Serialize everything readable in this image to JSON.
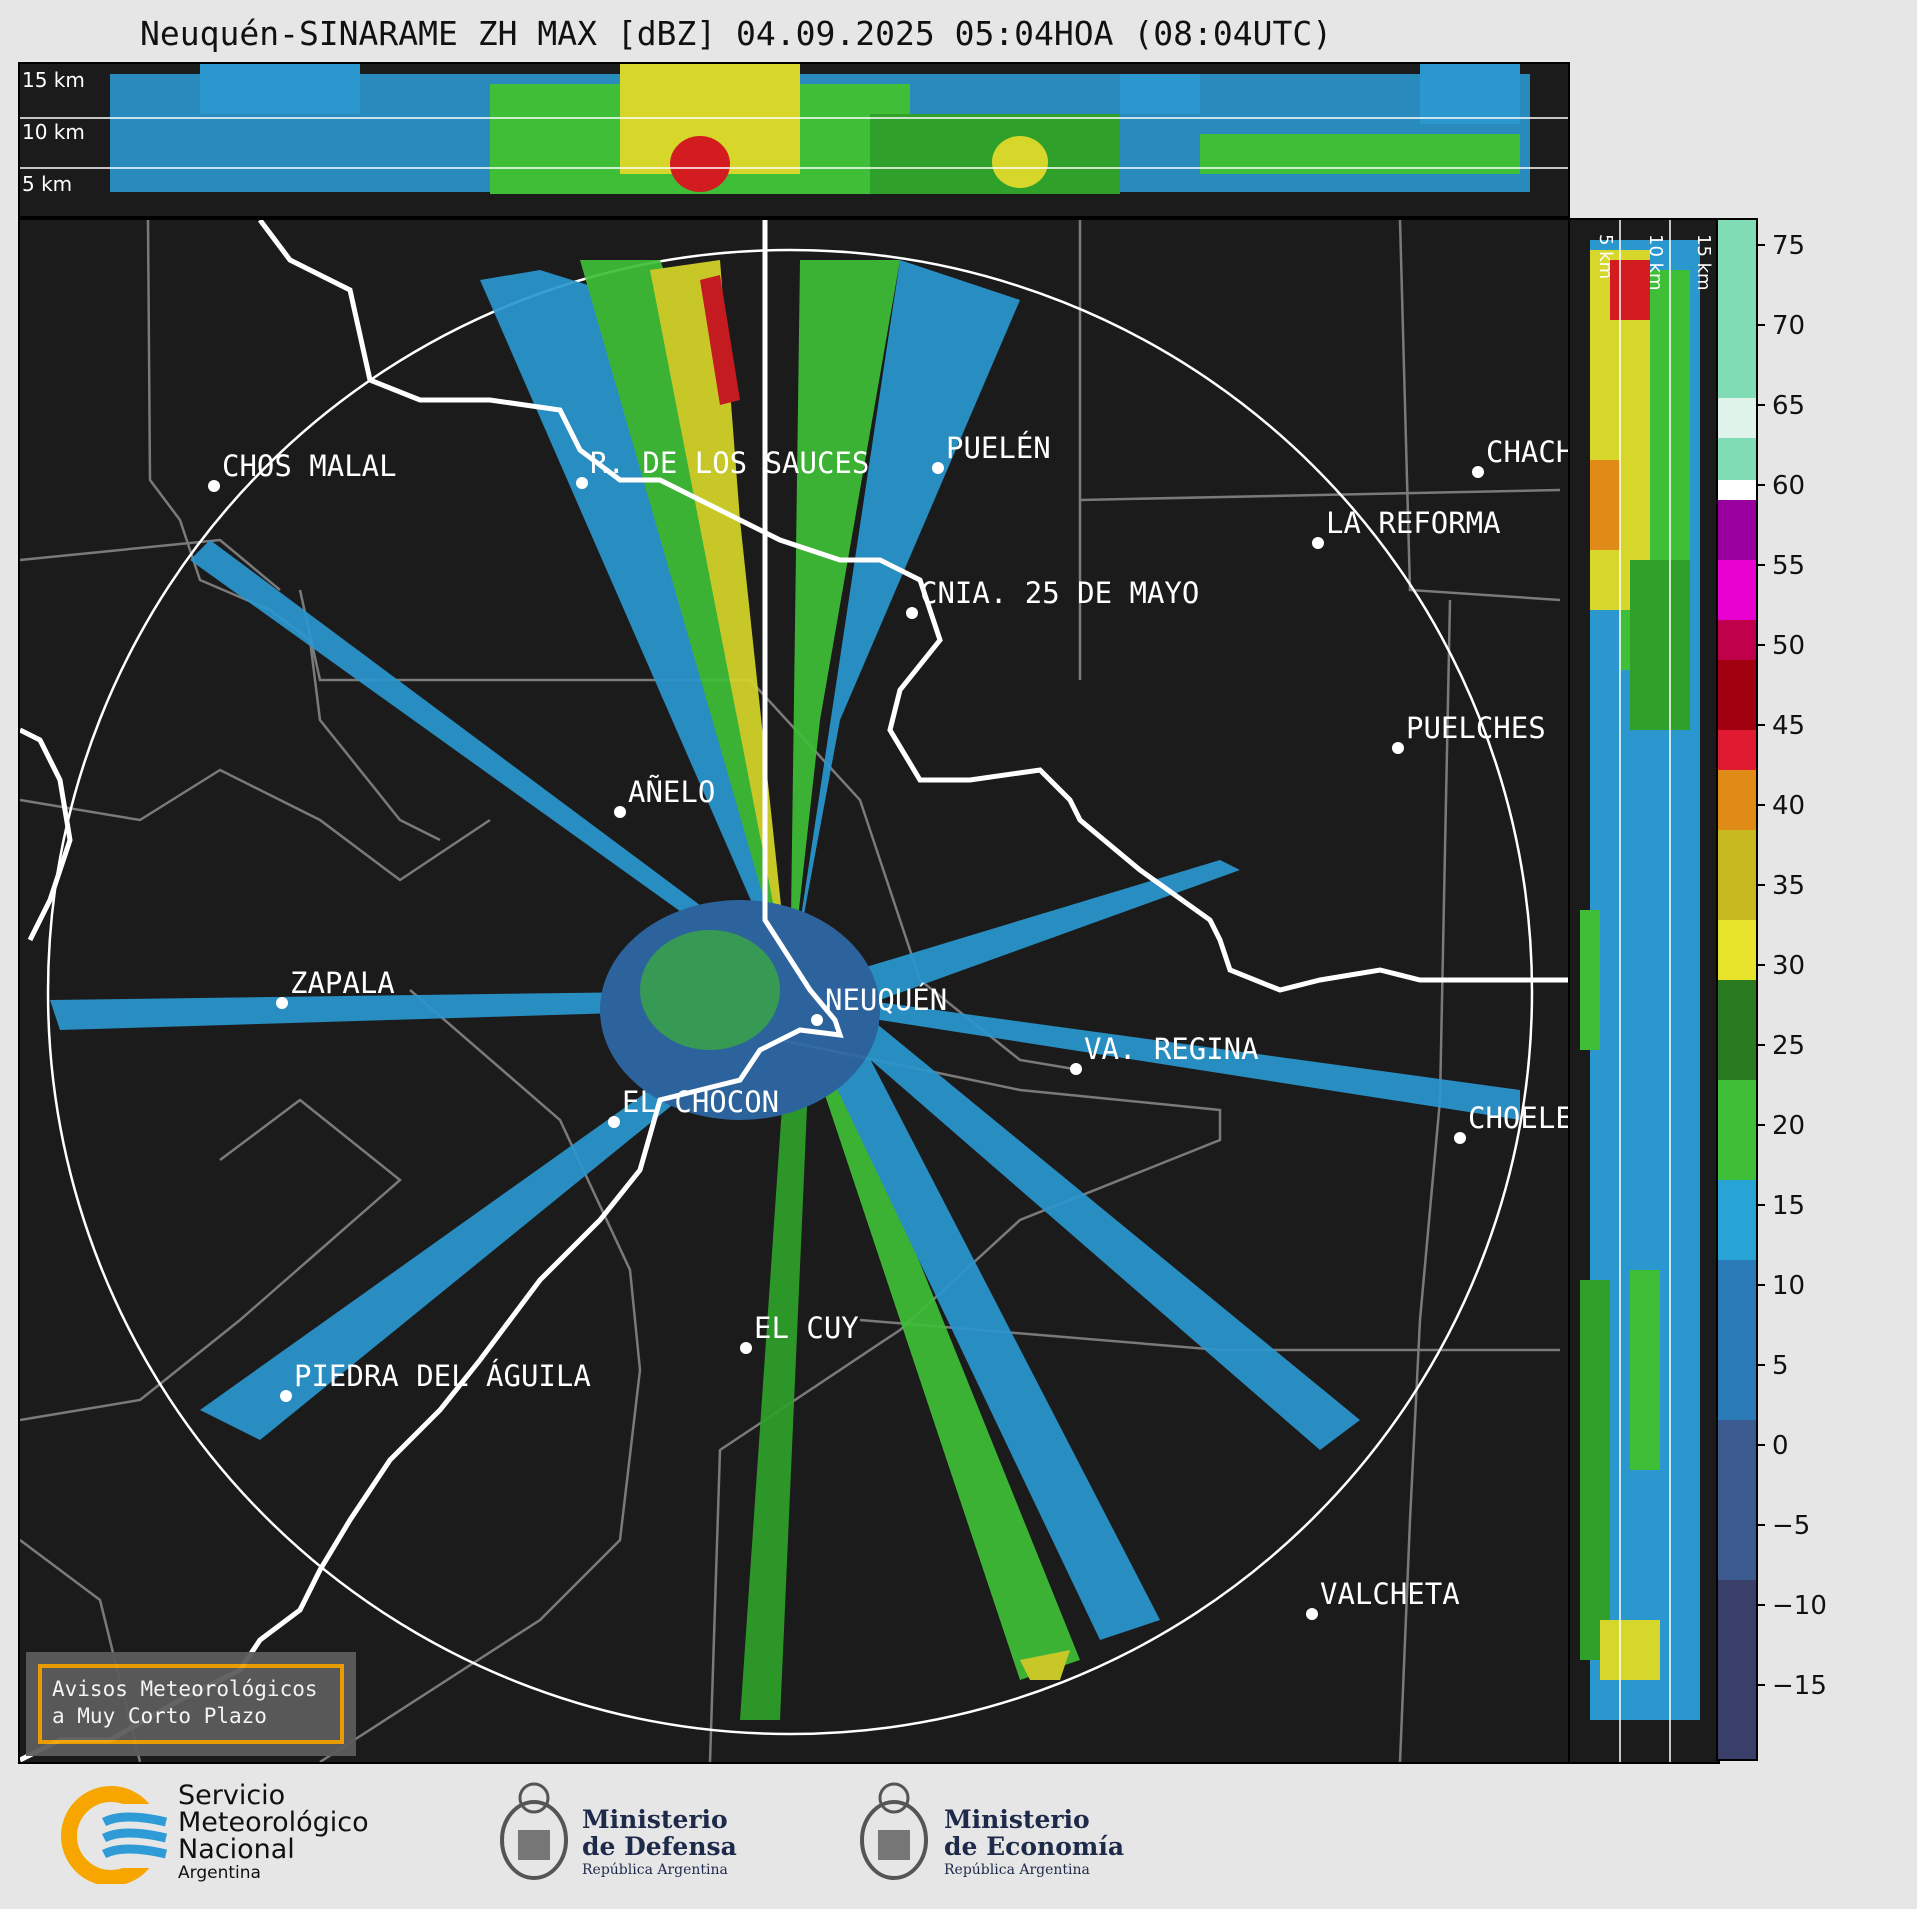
{
  "title": "Neuquén-SINARAME ZH MAX [dBZ] 04.09.2025 05:04HOA (08:04UTC)",
  "top_panel": {
    "height_labels": [
      "15 km",
      "10 km",
      "5 km"
    ]
  },
  "side_panel": {
    "height_labels": [
      "5 km",
      "10 km",
      "15 km"
    ]
  },
  "cities": [
    {
      "name": "CHOS MALAL"
    },
    {
      "name": "R. DE LOS SAUCES"
    },
    {
      "name": "PUELÉN"
    },
    {
      "name": "CHACH"
    },
    {
      "name": "LA REFORMA"
    },
    {
      "name": "CNIA. 25 DE MAYO"
    },
    {
      "name": "PUELCHES"
    },
    {
      "name": "AÑELO"
    },
    {
      "name": "ZAPALA"
    },
    {
      "name": "NEUQUÉN"
    },
    {
      "name": "VA. REGINA"
    },
    {
      "name": "EL CHOCON"
    },
    {
      "name": "CHOELE"
    },
    {
      "name": "EL CUY"
    },
    {
      "name": "PIEDRA DEL ÁGUILA"
    },
    {
      "name": "VALCHETA"
    }
  ],
  "colorbar": {
    "unit": "dBZ",
    "ticks": [
      "75",
      "70",
      "65",
      "60",
      "55",
      "50",
      "45",
      "40",
      "35",
      "30",
      "25",
      "20",
      "15",
      "10",
      "5",
      "0",
      "−5",
      "−10",
      "−15"
    ],
    "colors": {
      "below0": "#3a3f6a",
      "0_15": "#2e74b0",
      "15_18": "#27a3d6",
      "18_30": "#2fa12a",
      "30_40": "#d8d820",
      "40_44": "#e08a18",
      "44_50": "#d01020",
      "50_58": "#d000b0",
      "60": "#ffffff",
      "60_76": "#7fdcb4"
    }
  },
  "notice": {
    "line1": "Avisos Meteorológicos",
    "line2": "a Muy Corto Plazo",
    "border_color": "#f5a300"
  },
  "logos": {
    "smn": {
      "line1": "Servicio",
      "line2": "Meteorológico",
      "line3": "Nacional",
      "line4": "Argentina"
    },
    "defensa": {
      "line1": "Ministerio",
      "line2": "de Defensa",
      "line3": "República Argentina"
    },
    "economia": {
      "line1": "Ministerio",
      "line2": "de Economía",
      "line3": "República Argentina"
    }
  }
}
